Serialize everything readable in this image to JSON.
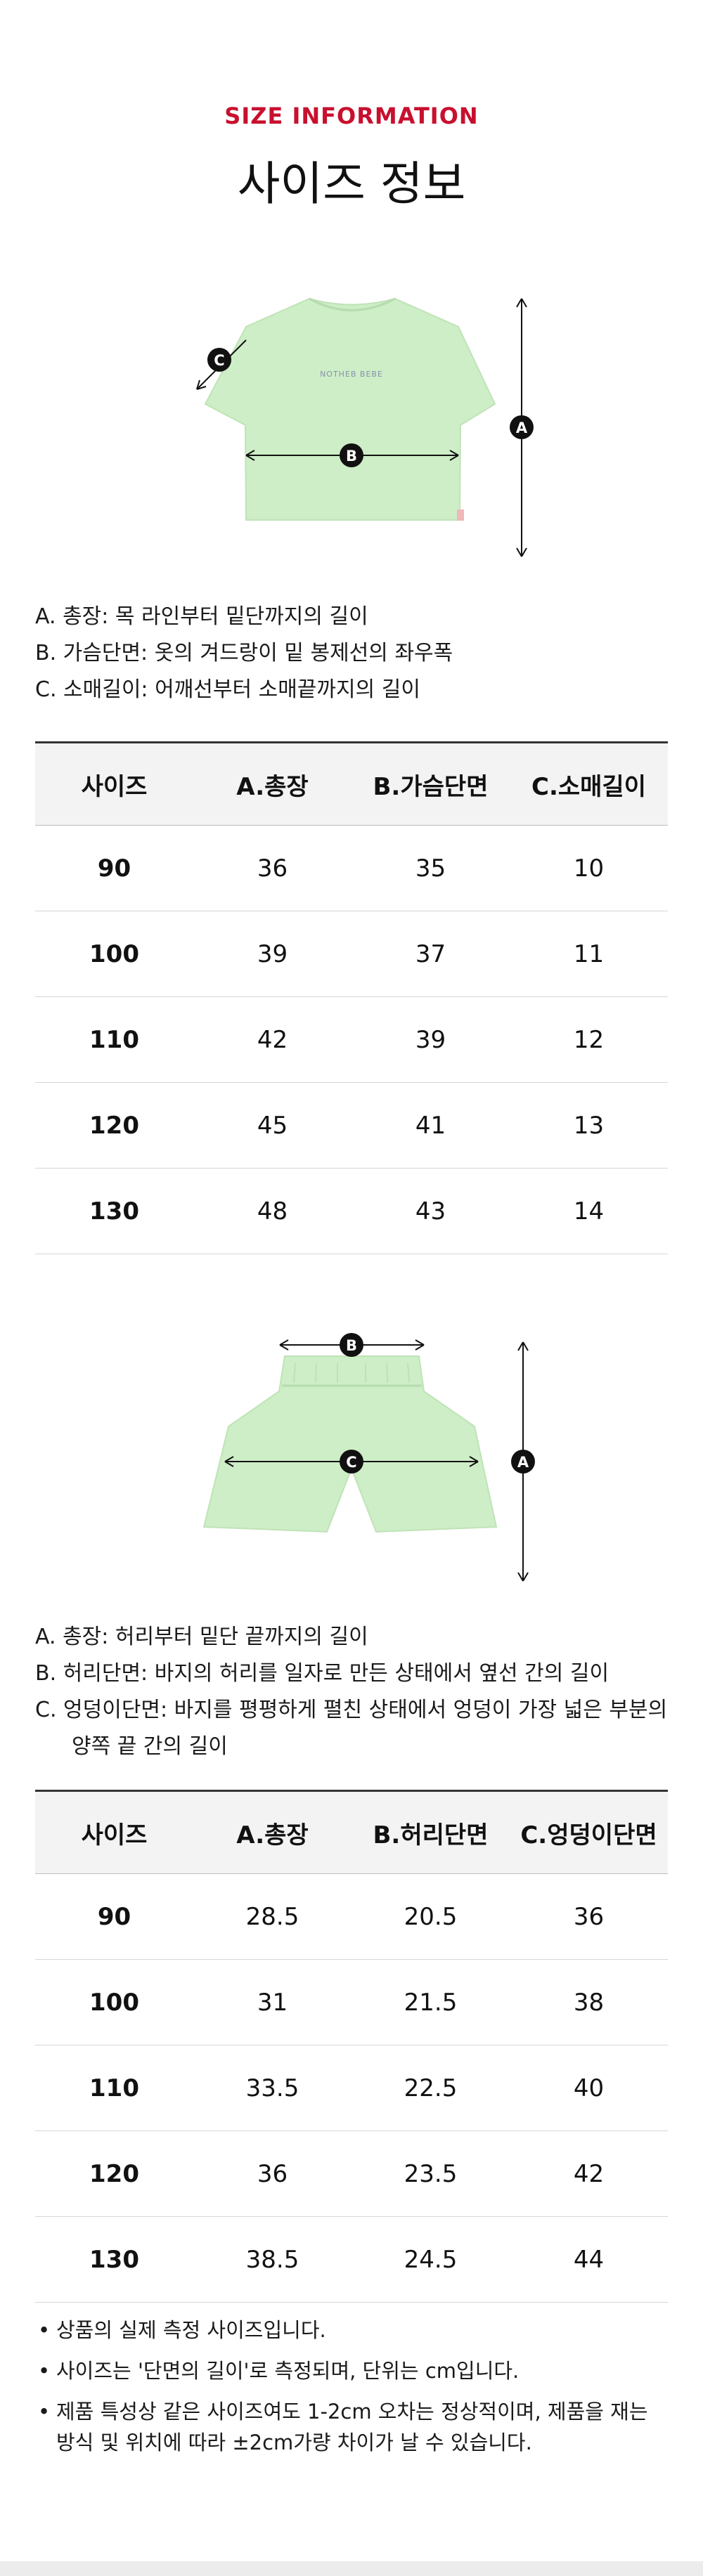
{
  "header": {
    "eyebrow": "SIZE INFORMATION",
    "title": "사이즈 정보"
  },
  "colors": {
    "accent": "#c8102e",
    "garment": "#cdeec6",
    "marker": "#111111"
  },
  "top_section": {
    "illustration": {
      "garment": "t-shirt",
      "markers": [
        "A",
        "B",
        "C"
      ],
      "print_text": "NOTHEB BEBE"
    },
    "descriptions": [
      "A. 총장: 목 라인부터 밑단까지의 길이",
      "B. 가슴단면: 옷의 겨드랑이 밑 봉제선의 좌우폭",
      "C. 소매길이: 어깨선부터 소매끝까지의 길이"
    ],
    "table": {
      "headers": [
        "사이즈",
        "A.총장",
        "B.가슴단면",
        "C.소매길이"
      ],
      "rows": [
        [
          "90",
          "36",
          "35",
          "10"
        ],
        [
          "100",
          "39",
          "37",
          "11"
        ],
        [
          "110",
          "42",
          "39",
          "12"
        ],
        [
          "120",
          "45",
          "41",
          "13"
        ],
        [
          "130",
          "48",
          "43",
          "14"
        ]
      ]
    }
  },
  "bottom_section": {
    "illustration": {
      "garment": "shorts",
      "markers": [
        "A",
        "B",
        "C"
      ]
    },
    "descriptions": [
      "A. 총장: 허리부터 밑단 끝까지의 길이",
      "B. 허리단면: 바지의 허리를 일자로 만든 상태에서 옆선 간의 길이",
      "C. 엉덩이단면: 바지를 평평하게 펼친 상태에서 엉덩이 가장 넓은 부분의",
      "양쪽 끝 간의 길이"
    ],
    "table": {
      "headers": [
        "사이즈",
        "A.총장",
        "B.허리단면",
        "C.엉덩이단면"
      ],
      "rows": [
        [
          "90",
          "28.5",
          "20.5",
          "36"
        ],
        [
          "100",
          "31",
          "21.5",
          "38"
        ],
        [
          "110",
          "33.5",
          "22.5",
          "40"
        ],
        [
          "120",
          "36",
          "23.5",
          "42"
        ],
        [
          "130",
          "38.5",
          "24.5",
          "44"
        ]
      ]
    }
  },
  "notes": {
    "bullet": "•",
    "items": [
      "상품의 실제 측정 사이즈입니다.",
      "사이즈는 '단면의 길이'로 측정되며, 단위는 cm입니다.",
      "제품 특성상 같은 사이즈여도 1-2cm 오차는 정상적이며, 제품을 재는 방식 및 위치에 따라 ±2cm가량 차이가 날 수 있습니다."
    ]
  }
}
